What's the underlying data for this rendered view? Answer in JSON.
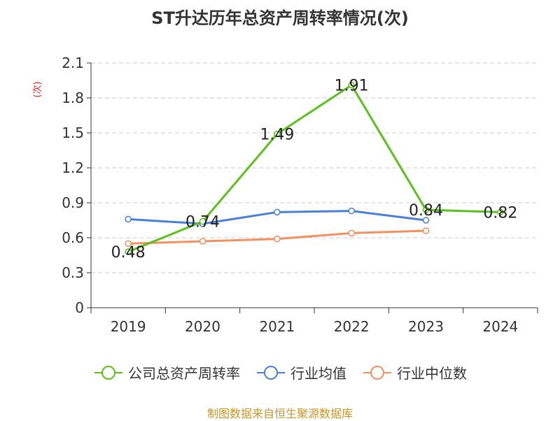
{
  "chart_data": {
    "type": "line",
    "title": "ST升达历年总资产周转率情况(次)",
    "ylabel": "(次)",
    "xlabel": "",
    "categories": [
      "2019",
      "2020",
      "2021",
      "2022",
      "2023",
      "2024"
    ],
    "ylim": [
      0,
      2.1
    ],
    "yticks": [
      "0",
      "0.3",
      "0.6",
      "0.9",
      "1.2",
      "1.5",
      "1.8",
      "2.1"
    ],
    "grid": true,
    "legend_position": "bottom",
    "series": [
      {
        "name": "公司总资产周转率",
        "color": "#5cc01e",
        "values": [
          0.48,
          0.74,
          1.49,
          1.91,
          0.84,
          0.82
        ],
        "labels": [
          "0.48",
          "0.74",
          "1.49",
          "1.91",
          "0.84",
          "0.82"
        ]
      },
      {
        "name": "行业均值",
        "color": "#4a7fd6",
        "values": [
          0.76,
          0.72,
          0.82,
          0.83,
          0.75,
          null
        ]
      },
      {
        "name": "行业中位数",
        "color": "#f39060",
        "values": [
          0.55,
          0.57,
          0.59,
          0.64,
          0.66,
          null
        ]
      }
    ]
  },
  "source": "制图数据来自恒生聚源数据库"
}
